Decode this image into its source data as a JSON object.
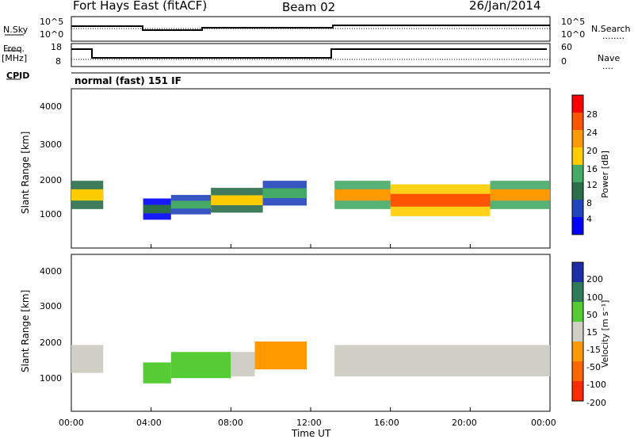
{
  "header": {
    "station": "Fort Hays East (fitACF)",
    "beam": "Beam 02",
    "date": "26/Jan/2014"
  },
  "side_labels": {
    "nsky": "N.Sky",
    "freq": "Freq.",
    "mhz": "[MHz]",
    "cpid": "CPID",
    "nsearch": "N.Search",
    "nave": "Nave",
    "nsearch_dots": "........",
    "nave_dots": "....",
    "nsky_top": "10^5",
    "nsky_bot": "10^0",
    "nsearch_top": "10^5",
    "nsearch_bot": "10^0",
    "freq_top": "18",
    "freq_bot": "8",
    "nave_top": "60",
    "nave_bot": "0"
  },
  "mode": "normal (fast) 151 IF",
  "time_axis": {
    "label": "Time UT",
    "ticks": [
      "00:00",
      "04:00",
      "08:00",
      "12:00",
      "16:00",
      "20:00",
      "00:00"
    ]
  },
  "power_panel": {
    "ylabel": "Slant Range [km]",
    "yticks": [
      "4000",
      "3000",
      "2000",
      "1000"
    ],
    "colorbar_label": "Power [dB]",
    "colorbar_ticks": [
      "28",
      "24",
      "20",
      "16",
      "12",
      "8",
      "4"
    ],
    "colorbar_colors": [
      "#ff0000",
      "#ff5500",
      "#ff9900",
      "#ffcc00",
      "#44aa66",
      "#2a6e4a",
      "#2244bb",
      "#0000ff"
    ]
  },
  "velocity_panel": {
    "ylabel": "Slant Range [km]",
    "yticks": [
      "4000",
      "3000",
      "2000",
      "1000"
    ],
    "colorbar_label": "Velocity [m s⁻¹]",
    "colorbar_ticks": [
      "200",
      "100",
      "50",
      "15",
      "-15",
      "-50",
      "-100",
      "-200"
    ],
    "colorbar_colors": [
      "#1a2ea8",
      "#2f7a5a",
      "#55cc33",
      "#cfcfc5",
      "#ff9900",
      "#ff6600",
      "#ff2a00"
    ]
  },
  "chart_data": {
    "type": "heatmap",
    "x_unit": "hours UT",
    "xlim": [
      0,
      24
    ],
    "ylim": [
      0,
      4500
    ],
    "power_bands": [
      {
        "t0": 0.0,
        "t1": 1.6,
        "r0": 1100,
        "r1": 1900,
        "db": 16
      },
      {
        "t0": 3.6,
        "t1": 5.0,
        "r0": 800,
        "r1": 1400,
        "db": 8
      },
      {
        "t0": 5.0,
        "t1": 7.0,
        "r0": 950,
        "r1": 1500,
        "db": 14
      },
      {
        "t0": 7.0,
        "t1": 9.6,
        "r0": 1000,
        "r1": 1700,
        "db": 16
      },
      {
        "t0": 9.6,
        "t1": 11.8,
        "r0": 1200,
        "r1": 1900,
        "db": 12
      },
      {
        "t0": 13.2,
        "t1": 16.0,
        "r0": 1100,
        "r1": 1900,
        "db": 20
      },
      {
        "t0": 16.0,
        "t1": 21.0,
        "r0": 900,
        "r1": 1800,
        "db": 24
      },
      {
        "t0": 21.0,
        "t1": 24.0,
        "r0": 1100,
        "r1": 1900,
        "db": 22
      }
    ],
    "velocity_bands": [
      {
        "t0": 0.0,
        "t1": 1.6,
        "r0": 1100,
        "r1": 1900,
        "v": 0
      },
      {
        "t0": 3.6,
        "t1": 5.0,
        "r0": 800,
        "r1": 1400,
        "v": 40
      },
      {
        "t0": 5.0,
        "t1": 8.0,
        "r0": 950,
        "r1": 1700,
        "v": 60
      },
      {
        "t0": 8.0,
        "t1": 9.2,
        "r0": 1000,
        "r1": 1700,
        "v": 0
      },
      {
        "t0": 9.2,
        "t1": 11.8,
        "r0": 1200,
        "r1": 2000,
        "v": -40
      },
      {
        "t0": 13.2,
        "t1": 24.0,
        "r0": 1000,
        "r1": 1900,
        "v": 0
      }
    ]
  }
}
